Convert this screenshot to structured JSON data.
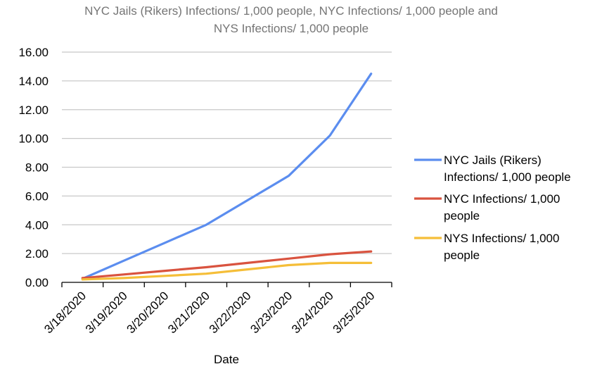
{
  "chart_data": {
    "type": "line",
    "title_lines": [
      "NYC Jails (Rikers) Infections/ 1,000 people, NYC Infections/ 1,000 people and",
      "NYS Infections/ 1,000 people"
    ],
    "xlabel": "Date",
    "ylabel": "",
    "categories": [
      "3/18/2020",
      "3/19/2020",
      "3/20/2020",
      "3/21/2020",
      "3/22/2020",
      "3/23/2020",
      "3/24/2020",
      "3/25/2020"
    ],
    "y_ticks": [
      "0.00",
      "2.00",
      "4.00",
      "6.00",
      "8.00",
      "10.00",
      "12.00",
      "14.00",
      "16.00"
    ],
    "ylim": [
      0,
      16
    ],
    "grid": true,
    "legend_position": "right",
    "series": [
      {
        "name": "NYC Jails (Rikers) Infections/ 1,000 people",
        "legend_lines": [
          "NYC Jails (Rikers)",
          "Infections/ 1,000 people"
        ],
        "color": "#5b8def",
        "values": [
          0.25,
          1.5,
          2.75,
          4.0,
          5.7,
          7.4,
          10.2,
          14.5
        ]
      },
      {
        "name": "NYC Infections/ 1,000 people",
        "legend_lines": [
          "NYC Infections/ 1,000",
          "people"
        ],
        "color": "#d9533f",
        "values": [
          0.3,
          0.55,
          0.8,
          1.05,
          1.35,
          1.65,
          1.95,
          2.15
        ]
      },
      {
        "name": "NYS Infections/ 1,000 people",
        "legend_lines": [
          "NYS Infections/ 1,000",
          "people"
        ],
        "color": "#f5be38",
        "values": [
          0.2,
          0.3,
          0.45,
          0.6,
          0.9,
          1.2,
          1.35,
          1.35
        ]
      }
    ]
  }
}
